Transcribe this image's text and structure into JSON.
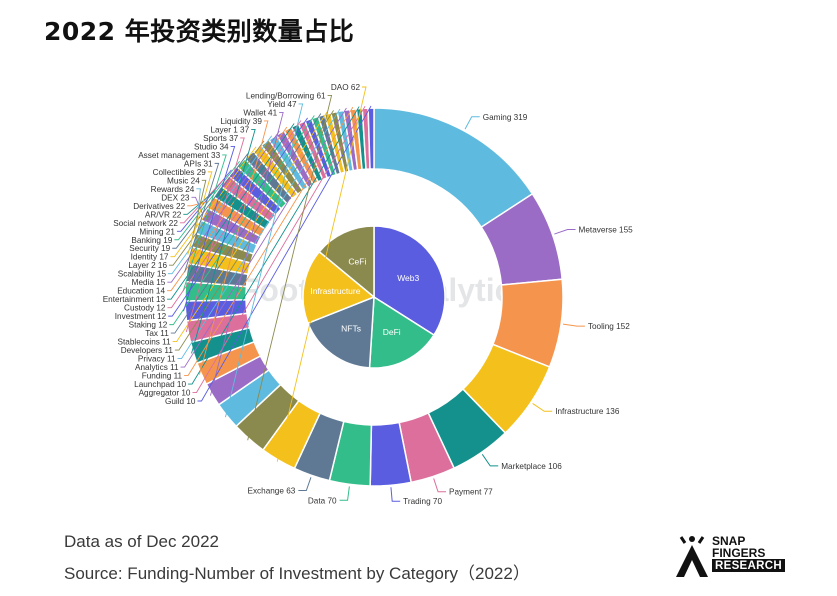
{
  "title": "2022 年投资类别数量占比",
  "notes": {
    "date": "Data as of Dec 2022",
    "source": "Source: Funding-Number of Investment by Category（2022）"
  },
  "watermark": "Footprint Analytics",
  "brand": {
    "line1": "SNAP",
    "line2": "FINGERS",
    "line3": "RESEARCH"
  },
  "chart_data": {
    "type": "pie",
    "style": "nested donut",
    "outer": [
      {
        "label": "Gaming",
        "value": 319,
        "color": "#5ebbdf"
      },
      {
        "label": "Metaverse",
        "value": 155,
        "color": "#9b6cc6"
      },
      {
        "label": "Tooling",
        "value": 152,
        "color": "#f5954d"
      },
      {
        "label": "Infrastructure",
        "value": 136,
        "color": "#f4c01b"
      },
      {
        "label": "Marketplace",
        "value": 106,
        "color": "#14918c"
      },
      {
        "label": "Payment",
        "value": 77,
        "color": "#dc6f9c"
      },
      {
        "label": "Trading",
        "value": 70,
        "color": "#5a5de0"
      },
      {
        "label": "Data",
        "value": 70,
        "color": "#33bd8a"
      },
      {
        "label": "Exchange",
        "value": 63,
        "color": "#5f7995"
      },
      {
        "label": "DAO",
        "value": 62,
        "color": "#f4c01b"
      },
      {
        "label": "Lending/Borrowing",
        "value": 61,
        "color": "#8b8a4e"
      },
      {
        "label": "Yield",
        "value": 47,
        "color": "#5ebbdf"
      },
      {
        "label": "Wallet",
        "value": 41,
        "color": "#9b6cc6"
      },
      {
        "label": "Liquidity",
        "value": 39,
        "color": "#f5954d"
      },
      {
        "label": "Layer 1",
        "value": 37,
        "color": "#14918c"
      },
      {
        "label": "Sports",
        "value": 37,
        "color": "#dc6f9c"
      },
      {
        "label": "Studio",
        "value": 34,
        "color": "#5a5de0"
      },
      {
        "label": "Asset management",
        "value": 33,
        "color": "#33bd8a"
      },
      {
        "label": "APIs",
        "value": 31,
        "color": "#5f7995"
      },
      {
        "label": "Collectibles",
        "value": 29,
        "color": "#f4c01b"
      },
      {
        "label": "Music",
        "value": 24,
        "color": "#8b8a4e"
      },
      {
        "label": "Rewards",
        "value": 24,
        "color": "#5ebbdf"
      },
      {
        "label": "DEX",
        "value": 23,
        "color": "#9b6cc6"
      },
      {
        "label": "Derivatives",
        "value": 22,
        "color": "#f5954d"
      },
      {
        "label": "AR/VR",
        "value": 22,
        "color": "#14918c"
      },
      {
        "label": "Social network",
        "value": 22,
        "color": "#dc6f9c"
      },
      {
        "label": "Mining",
        "value": 21,
        "color": "#5a5de0"
      },
      {
        "label": "Banking",
        "value": 19,
        "color": "#33bd8a"
      },
      {
        "label": "Security",
        "value": 19,
        "color": "#5f7995"
      },
      {
        "label": "Identity",
        "value": 17,
        "color": "#f4c01b"
      },
      {
        "label": "Layer 2",
        "value": 16,
        "color": "#8b8a4e"
      },
      {
        "label": "Scalability",
        "value": 15,
        "color": "#5ebbdf"
      },
      {
        "label": "Media",
        "value": 15,
        "color": "#9b6cc6"
      },
      {
        "label": "Education",
        "value": 14,
        "color": "#f5954d"
      },
      {
        "label": "Entertainment",
        "value": 13,
        "color": "#14918c"
      },
      {
        "label": "Custody",
        "value": 12,
        "color": "#dc6f9c"
      },
      {
        "label": "Investment",
        "value": 12,
        "color": "#5a5de0"
      },
      {
        "label": "Staking",
        "value": 12,
        "color": "#33bd8a"
      },
      {
        "label": "Tax",
        "value": 11,
        "color": "#5f7995"
      },
      {
        "label": "Stablecoins",
        "value": 11,
        "color": "#f4c01b"
      },
      {
        "label": "Developers",
        "value": 11,
        "color": "#8b8a4e"
      },
      {
        "label": "Privacy",
        "value": 11,
        "color": "#5ebbdf"
      },
      {
        "label": "Analytics",
        "value": 11,
        "color": "#9b6cc6"
      },
      {
        "label": "Funding",
        "value": 11,
        "color": "#f5954d"
      },
      {
        "label": "Launchpad",
        "value": 10,
        "color": "#14918c"
      },
      {
        "label": "Aggregator",
        "value": 10,
        "color": "#dc6f9c"
      },
      {
        "label": "Guild",
        "value": 10,
        "color": "#5a5de0"
      }
    ],
    "inner": [
      {
        "label": "Web3",
        "share": 0.34,
        "color": "#5a5de0"
      },
      {
        "label": "DeFi",
        "share": 0.17,
        "color": "#33bd8a"
      },
      {
        "label": "NFTs",
        "share": 0.18,
        "color": "#5f7995"
      },
      {
        "label": "Infrastructure",
        "share": 0.17,
        "color": "#f4c01b"
      },
      {
        "label": "CeFi",
        "share": 0.14,
        "color": "#8b8a4e"
      }
    ]
  }
}
